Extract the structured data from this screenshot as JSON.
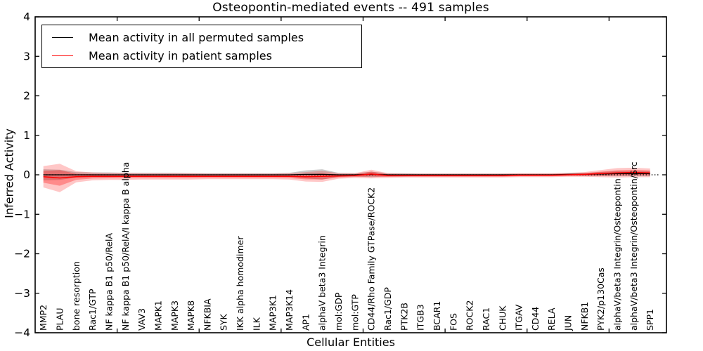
{
  "chart_data": {
    "type": "line",
    "title": "Osteopontin-mediated events -- 491 samples",
    "xlabel": "Cellular Entities",
    "ylabel": "Inferred Activity",
    "ylim": [
      -4,
      4
    ],
    "xlim": [
      0,
      38.5
    ],
    "grid": false,
    "yticks": [
      {
        "v": 4,
        "label": "4"
      },
      {
        "v": 3,
        "label": "3"
      },
      {
        "v": 2,
        "label": "2"
      },
      {
        "v": 1,
        "label": "1"
      },
      {
        "v": 0,
        "label": "0"
      },
      {
        "v": -1,
        "label": "−1"
      },
      {
        "v": -2,
        "label": "−2"
      },
      {
        "v": -3,
        "label": "−3"
      },
      {
        "v": -4,
        "label": "−4"
      }
    ],
    "xtick_positions": [
      5,
      10,
      15,
      20,
      25,
      30,
      35
    ],
    "categories": [
      "MMP2",
      "PLAU",
      "bone resorption",
      "Rac1/GTP",
      "NF kappa B1 p50/RelA",
      "NF kappa B1 p50/RelA/I kappa B alpha",
      "VAV3",
      "MAPK1",
      "MAPK3",
      "MAPK8",
      "NFKBIA",
      "SYK",
      "IKK alpha homodimer",
      "ILK",
      "MAP3K1",
      "MAP3K14",
      "AP1",
      "alphaV beta3 Integrin",
      "mol:GDP",
      "mol:GTP",
      "CD44/Rho Family GTPase/ROCK2",
      "Rac1/GDP",
      "PTK2B",
      "ITGB3",
      "BCAR1",
      "FOS",
      "ROCK2",
      "RAC1",
      "CHUK",
      "ITGAV",
      "CD44",
      "RELA",
      "JUN",
      "NFKB1",
      "PYK2/p130Cas",
      "alphaV/beta3 Integrin/Osteopontin",
      "alphaV/beta3 Integrin/Osteopontin/Src",
      "SPP1"
    ],
    "reference_line": {
      "y": 0,
      "style": "dotted",
      "color": "#000000"
    },
    "legend": {
      "position": "upper left",
      "entries": [
        {
          "label": "Mean activity in all permuted samples",
          "color": "#000000"
        },
        {
          "label": "Mean activity in patient samples",
          "color": "#ff0000"
        }
      ]
    },
    "series": [
      {
        "name": "Mean activity in all permuted samples",
        "color": "#000000",
        "band_color": "#777777",
        "values": [
          0,
          0,
          0,
          0,
          0,
          0,
          0,
          0,
          0,
          0,
          0,
          0,
          0,
          0,
          0,
          0,
          0.01,
          0.01,
          0,
          0,
          0.01,
          0,
          0,
          0,
          0,
          0,
          0,
          0,
          0,
          0,
          0,
          0,
          0.01,
          0.01,
          0.02,
          0.03,
          0.03,
          0.03
        ],
        "band": [
          0.14,
          0.13,
          0.07,
          0.06,
          0.06,
          0.05,
          0.05,
          0.05,
          0.05,
          0.04,
          0.04,
          0.04,
          0.04,
          0.04,
          0.04,
          0.05,
          0.1,
          0.13,
          0.05,
          0.04,
          0.07,
          0.04,
          0.04,
          0.03,
          0.03,
          0.03,
          0.03,
          0.03,
          0.03,
          0.03,
          0.03,
          0.03,
          0.03,
          0.04,
          0.05,
          0.06,
          0.06,
          0.06
        ]
      },
      {
        "name": "Mean activity in patient samples",
        "color": "#ff0000",
        "band_color": "#ff0000",
        "values": [
          -0.05,
          -0.08,
          -0.05,
          -0.04,
          -0.04,
          -0.04,
          -0.04,
          -0.04,
          -0.04,
          -0.04,
          -0.04,
          -0.04,
          -0.04,
          -0.04,
          -0.04,
          -0.04,
          -0.05,
          -0.04,
          -0.03,
          -0.02,
          0.02,
          -0.02,
          -0.02,
          -0.02,
          -0.02,
          -0.02,
          -0.02,
          -0.02,
          -0.02,
          -0.01,
          -0.01,
          -0.01,
          0,
          0.01,
          0.03,
          0.05,
          0.06,
          0.05
        ],
        "band": [
          0.27,
          0.36,
          0.14,
          0.1,
          0.09,
          0.09,
          0.08,
          0.08,
          0.08,
          0.08,
          0.07,
          0.07,
          0.07,
          0.07,
          0.07,
          0.08,
          0.12,
          0.14,
          0.07,
          0.06,
          0.11,
          0.06,
          0.05,
          0.05,
          0.05,
          0.05,
          0.05,
          0.05,
          0.05,
          0.05,
          0.05,
          0.05,
          0.05,
          0.06,
          0.09,
          0.12,
          0.12,
          0.11
        ]
      }
    ]
  }
}
